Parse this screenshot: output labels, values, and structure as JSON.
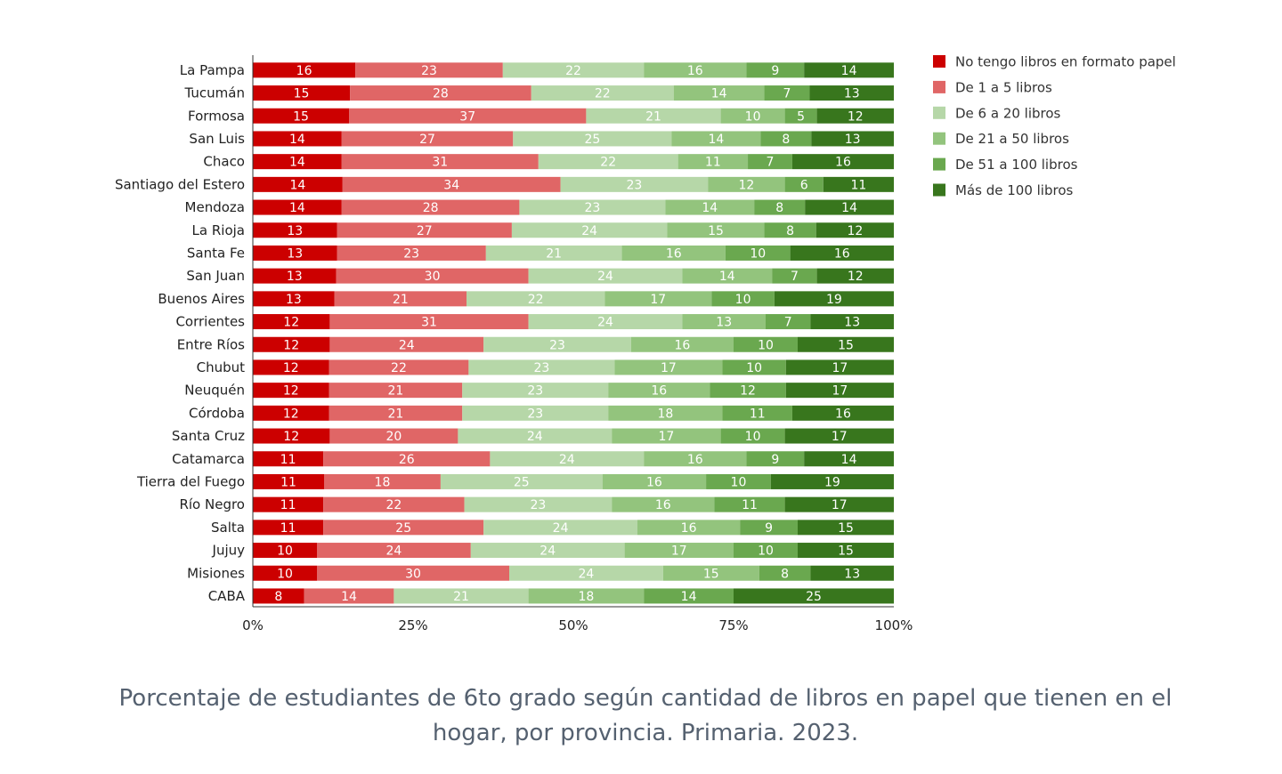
{
  "chart_data": {
    "type": "bar",
    "orientation": "horizontal",
    "stacked": "percent",
    "categories": [
      "La Pampa",
      "Tucumán",
      "Formosa",
      "San Luis",
      "Chaco",
      "Santiago del Estero",
      "Mendoza",
      "La Rioja",
      "Santa Fe",
      "San Juan",
      "Buenos Aires",
      "Corrientes",
      "Entre Ríos",
      "Chubut",
      "Neuquén",
      "Córdoba",
      "Santa Cruz",
      "Catamarca",
      "Tierra del Fuego",
      "Río Negro",
      "Salta",
      "Jujuy",
      "Misiones",
      "CABA"
    ],
    "series": [
      {
        "name": "No tengo libros en formato papel",
        "color": "#cc0000",
        "label_color": "#ffffff",
        "values": [
          16,
          15,
          15,
          14,
          14,
          14,
          14,
          13,
          13,
          13,
          13,
          12,
          12,
          12,
          12,
          12,
          12,
          11,
          11,
          11,
          11,
          10,
          10,
          8
        ]
      },
      {
        "name": "De 1 a 5 libros",
        "color": "#e06666",
        "label_color": "#ffffff",
        "values": [
          23,
          28,
          37,
          27,
          31,
          34,
          28,
          27,
          23,
          30,
          21,
          31,
          24,
          22,
          21,
          21,
          20,
          26,
          18,
          22,
          25,
          24,
          30,
          14
        ]
      },
      {
        "name": "De 6 a 20 libros",
        "color": "#b6d7a8",
        "label_color": "#ffffff",
        "values": [
          22,
          22,
          21,
          25,
          22,
          23,
          23,
          24,
          21,
          24,
          22,
          24,
          23,
          23,
          23,
          23,
          24,
          24,
          25,
          23,
          24,
          24,
          24,
          21
        ]
      },
      {
        "name": "De 21 a 50 libros",
        "color": "#93c47d",
        "label_color": "#ffffff",
        "values": [
          16,
          14,
          10,
          14,
          11,
          12,
          14,
          15,
          16,
          14,
          17,
          13,
          16,
          17,
          16,
          18,
          17,
          16,
          16,
          16,
          16,
          17,
          15,
          18
        ]
      },
      {
        "name": "De 51 a 100 libros",
        "color": "#6aa84f",
        "label_color": "#ffffff",
        "values": [
          9,
          7,
          5,
          8,
          7,
          6,
          8,
          8,
          10,
          7,
          10,
          7,
          10,
          10,
          12,
          11,
          10,
          9,
          10,
          11,
          9,
          10,
          8,
          14
        ]
      },
      {
        "name": "Más de 100 libros",
        "color": "#38761d",
        "label_color": "#ffffff",
        "values": [
          14,
          13,
          12,
          13,
          16,
          11,
          14,
          12,
          16,
          12,
          19,
          13,
          15,
          17,
          17,
          16,
          17,
          14,
          19,
          17,
          15,
          15,
          13,
          25
        ]
      }
    ],
    "x_ticks": [
      "0%",
      "25%",
      "50%",
      "75%",
      "100%"
    ],
    "xlim": [
      0,
      100
    ],
    "grid": false,
    "legend_position": "top-right"
  },
  "caption": "Porcentaje de estudiantes de 6to grado según cantidad de libros en papel que tienen en el hogar, por provincia. Primaria. 2023."
}
